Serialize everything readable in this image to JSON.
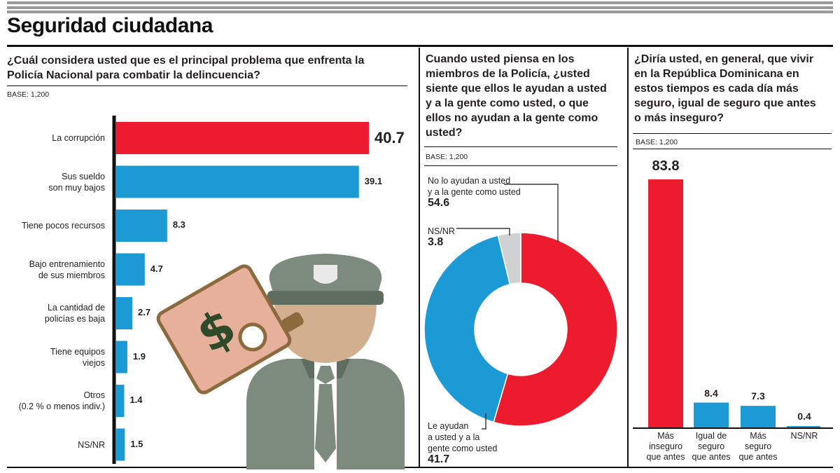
{
  "title": "Seguridad ciudadana",
  "colors": {
    "red": "#ec1c2e",
    "blue": "#1b9ad6",
    "gray": "#cfd1d2"
  },
  "panel1": {
    "question": "¿Cuál considera usted que es el principal problema que enfrenta la Policía Nacional para combatir la delincuencia?",
    "base": "BASE: 1,200",
    "illustration": "policeman-bribe-icon"
  },
  "panel2": {
    "question": "Cuando usted piensa en los miembros de la Policía, ¿usted siente que ellos le ayudan a usted y a la gente como usted, o que ellos no ayudan a la gente como usted?",
    "base": "BASE: 1,200"
  },
  "panel3": {
    "question": "¿Diría usted, en general, que vivir en la República Dominicana en estos tiempos es cada día más seguro, igual de seguro que antes o más inseguro?",
    "base": "BASE: 1,200"
  },
  "chart_data": [
    {
      "type": "bar",
      "orientation": "horizontal",
      "categories": [
        "La corrupción",
        "Sus sueldo son muy bajos",
        "Tiene pocos recursos",
        "Bajo entrenamiento de sus miembros",
        "La cantidad de policías es baja",
        "Tiene equipos viejos",
        "Otros (0.2 % o menos indiv.)",
        "NS/NR"
      ],
      "label_lines": [
        [
          "La corrupción"
        ],
        [
          "Sus sueldo",
          "son muy bajos"
        ],
        [
          "Tiene pocos recursos"
        ],
        [
          "Bajo entrenamiento",
          "de sus miembros"
        ],
        [
          "La cantidad de",
          "policías es baja"
        ],
        [
          "Tiene equipos",
          "viejos"
        ],
        [
          "Otros",
          "(0.2 % o menos indiv.)"
        ],
        [
          "NS/NR"
        ]
      ],
      "values": [
        40.7,
        39.1,
        8.3,
        4.7,
        2.7,
        1.9,
        1.4,
        1.5
      ],
      "value_labels": [
        "40.7",
        "39.1",
        "8.3",
        "4.7",
        "2.7",
        "1.9",
        "1.4",
        "1.5"
      ],
      "highlight_index": 0,
      "xlim": [
        0,
        45
      ]
    },
    {
      "type": "pie",
      "donut": true,
      "slices": [
        {
          "name": "No lo ayudan a usted y a la gente como usted",
          "lines": [
            "No lo ayudan a usted",
            "y a la gente como usted"
          ],
          "value": 54.6,
          "label": "54.6",
          "color": "red"
        },
        {
          "name": "Le ayudan a usted y a la gente como usted",
          "lines": [
            "Le ayudan",
            "a usted y a la",
            "gente como usted"
          ],
          "value": 41.7,
          "label": "41.7",
          "color": "blue"
        },
        {
          "name": "NS/NR",
          "lines": [
            "NS/NR"
          ],
          "value": 3.8,
          "label": "3.8",
          "color": "gray"
        }
      ]
    },
    {
      "type": "bar",
      "orientation": "vertical",
      "categories": [
        "Más inseguro que antes",
        "Igual de seguro que antes",
        "Más seguro que antes",
        "NS/NR"
      ],
      "label_lines": [
        [
          "Más",
          "inseguro",
          "que antes"
        ],
        [
          "Igual de",
          "seguro",
          "que antes"
        ],
        [
          "Más",
          "seguro",
          "que antes"
        ],
        [
          "NS/NR"
        ]
      ],
      "values": [
        83.8,
        8.4,
        7.3,
        0.4
      ],
      "value_labels": [
        "83.8",
        "8.4",
        "7.3",
        "0.4"
      ],
      "highlight_index": 0,
      "ylim": [
        0,
        83.8
      ]
    }
  ]
}
